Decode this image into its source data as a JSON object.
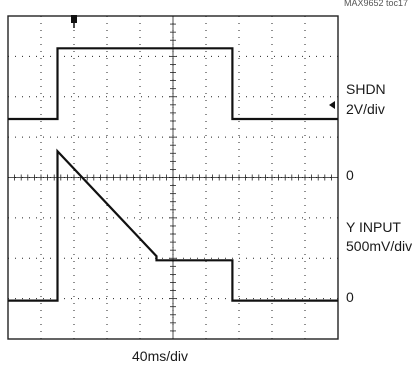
{
  "figure_id": "MAX9652 toc17",
  "channels": [
    {
      "name": "SHDN",
      "scale": "2V/div",
      "ground_marker": "0"
    },
    {
      "name": "Y INPUT",
      "scale": "500mV/div",
      "ground_marker": "0"
    }
  ],
  "timebase": "40ms/div",
  "colors": {
    "trace": "#111111",
    "grid": "#222222",
    "background": "#ffffff"
  },
  "chart_data": {
    "type": "line",
    "title": "",
    "xlabel": "40ms/div",
    "ylabel": "",
    "grid": true,
    "divisions": {
      "x": 10,
      "y": 8
    },
    "xlim": [
      0,
      10
    ],
    "ylim": [
      0,
      8
    ],
    "x_unit": "divisions",
    "y_unit": "divisions",
    "series": [
      {
        "name": "SHDN",
        "points": [
          [
            0,
            5.45
          ],
          [
            1.5,
            5.45
          ],
          [
            1.5,
            7.2
          ],
          [
            6.8,
            7.2
          ],
          [
            6.8,
            5.45
          ],
          [
            10,
            5.45
          ]
        ]
      },
      {
        "name": "Y INPUT",
        "points": [
          [
            0,
            0.95
          ],
          [
            1.5,
            0.95
          ],
          [
            1.5,
            4.65
          ],
          [
            4.5,
            2.05
          ],
          [
            4.5,
            1.95
          ],
          [
            6.8,
            1.95
          ],
          [
            6.8,
            0.95
          ],
          [
            10,
            0.95
          ]
        ]
      }
    ]
  }
}
